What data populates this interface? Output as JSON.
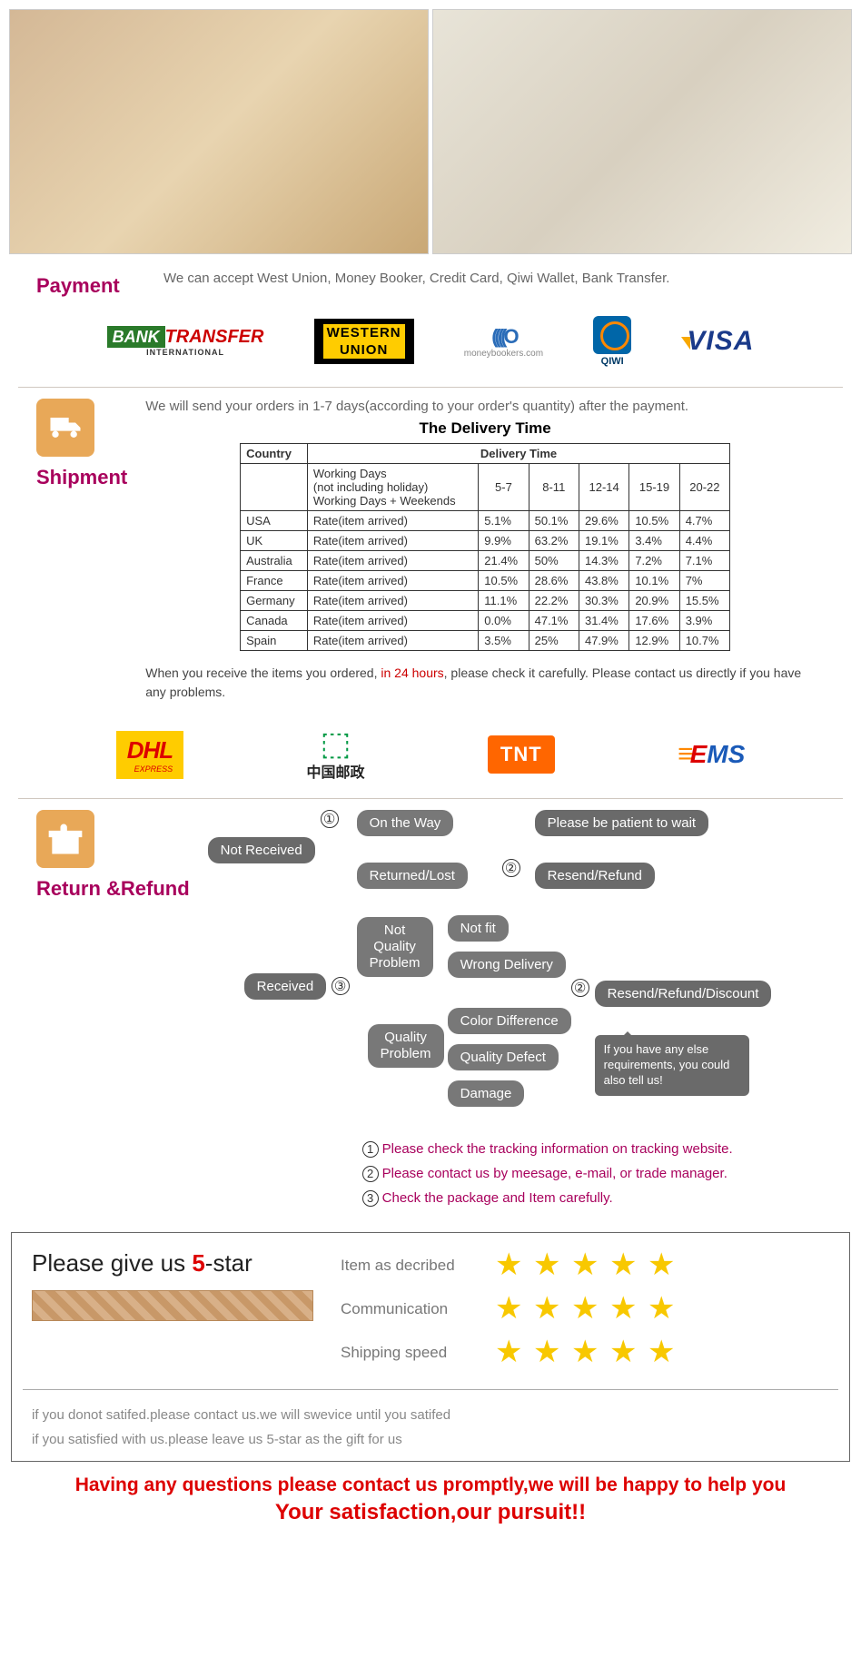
{
  "payment": {
    "title": "Payment",
    "intro": "We can accept West Union, Money Booker, Credit Card, Qiwi Wallet, Bank Transfer.",
    "logos": {
      "bank": {
        "l1": "BANK",
        "l2": "TRANSFER",
        "sub": "INTERNATIONAL"
      },
      "wu": {
        "l1": "WESTERN",
        "l2": "UNION"
      },
      "mb": {
        "curves": "((((O",
        "sub": "moneybookers.com"
      },
      "qiwi": "QIWI",
      "visa": "VISA"
    }
  },
  "shipment": {
    "title": "Shipment",
    "intro": "We will send your orders in 1-7 days(according to your order's quantity) after the payment.",
    "table_title": "The Delivery Time",
    "header": {
      "c0": "Country",
      "c1": "Delivery Time"
    },
    "sub_header": {
      "desc1": "Working Days",
      "desc2": "(not including holiday)",
      "desc3": "Working Days + Weekends",
      "d1": "5-7",
      "d2": "8-11",
      "d3": "12-14",
      "d4": "15-19",
      "d5": "20-22"
    },
    "rate_label": "Rate(item arrived)",
    "rows": [
      {
        "c": "USA",
        "v": [
          "5.1%",
          "50.1%",
          "29.6%",
          "10.5%",
          "4.7%"
        ]
      },
      {
        "c": "UK",
        "v": [
          "9.9%",
          "63.2%",
          "19.1%",
          "3.4%",
          "4.4%"
        ]
      },
      {
        "c": "Australia",
        "v": [
          "21.4%",
          "50%",
          "14.3%",
          "7.2%",
          "7.1%"
        ]
      },
      {
        "c": "France",
        "v": [
          "10.5%",
          "28.6%",
          "43.8%",
          "10.1%",
          "7%"
        ]
      },
      {
        "c": "Germany",
        "v": [
          "11.1%",
          "22.2%",
          "30.3%",
          "20.9%",
          "15.5%"
        ]
      },
      {
        "c": "Canada",
        "v": [
          "0.0%",
          "47.1%",
          "31.4%",
          "17.6%",
          "3.9%"
        ]
      },
      {
        "c": "Spain",
        "v": [
          "3.5%",
          "25%",
          "47.9%",
          "12.9%",
          "10.7%"
        ]
      }
    ],
    "note_pre": "When you receive the items you ordered, ",
    "note_red": "in 24 hours",
    "note_post": ", please check it carefully. Please contact us directly if you have any problems.",
    "carriers": {
      "dhl": "DHL",
      "dhl_sub": "EXPRESS",
      "cp": "中国邮政",
      "tnt": "TNT",
      "ems": "EMS"
    }
  },
  "return": {
    "title": "Return &Refund",
    "boxes": {
      "not_received": "Not Received",
      "on_the_way": "On the Way",
      "patient": "Please be patient to wait",
      "returned": "Returned/Lost",
      "resend1": "Resend/Refund",
      "received": "Received",
      "not_quality": "Not\nQuality\nProblem",
      "not_fit": "Not fit",
      "wrong": "Wrong Delivery",
      "quality": "Quality\nProblem",
      "color": "Color Difference",
      "defect": "Quality Defect",
      "damage": "Damage",
      "resend2": "Resend/Refund/Discount",
      "bubble": "If you have any else requirements, you could also tell us!"
    },
    "notes": {
      "n1": "Please check the tracking information on tracking website.",
      "n2": "Please contact us by meesage, e-mail, or trade manager.",
      "n3": "Check the package and Item carefully."
    }
  },
  "rating": {
    "title_pre": "Please give us ",
    "title_five": "5",
    "title_post": "-star",
    "rows": [
      {
        "label": "Item as decribed"
      },
      {
        "label": "Communication"
      },
      {
        "label": "Shipping speed"
      }
    ],
    "note1": "if you donot satifed.please contact us.we will swevice until you satifed",
    "note2": "if you satisfied with us.please leave us 5-star as the gift for us"
  },
  "footer": {
    "l1": "Having any questions please contact us promptly,we will be happy to help you",
    "l2": "Your satisfaction,our pursuit!!"
  },
  "colors": {
    "accent": "#a8005c",
    "red": "#d00",
    "star": "#f8c800",
    "box": "#6a6a6a"
  }
}
